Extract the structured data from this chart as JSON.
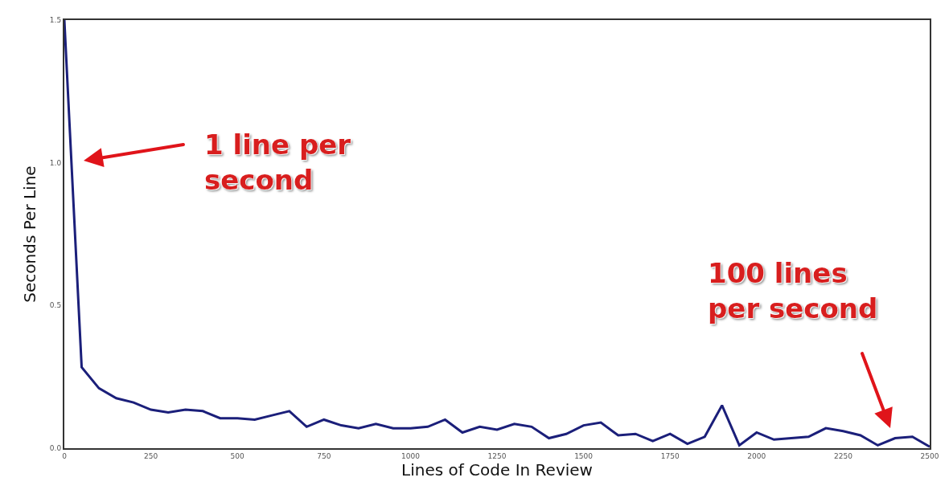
{
  "chart_data": {
    "type": "line",
    "xlabel": "Lines of Code In Review",
    "ylabel": "Seconds Per Line",
    "x": [
      0,
      50,
      100,
      150,
      200,
      250,
      300,
      350,
      400,
      450,
      500,
      550,
      600,
      650,
      700,
      750,
      800,
      850,
      900,
      950,
      1000,
      1050,
      1100,
      1150,
      1200,
      1250,
      1300,
      1350,
      1400,
      1450,
      1500,
      1550,
      1600,
      1650,
      1700,
      1750,
      1800,
      1850,
      1900,
      1950,
      2000,
      2050,
      2100,
      2150,
      2200,
      2250,
      2300,
      2350,
      2400,
      2450,
      2500
    ],
    "series": [
      {
        "color": "#1b1f7a",
        "values": [
          1.5,
          0.284,
          0.21,
          0.175,
          0.16,
          0.135,
          0.125,
          0.135,
          0.13,
          0.105,
          0.105,
          0.1,
          0.115,
          0.13,
          0.075,
          0.1,
          0.08,
          0.07,
          0.085,
          0.07,
          0.07,
          0.075,
          0.1,
          0.055,
          0.075,
          0.065,
          0.085,
          0.075,
          0.035,
          0.05,
          0.08,
          0.09,
          0.045,
          0.05,
          0.025,
          0.05,
          0.015,
          0.04,
          0.15,
          0.01,
          0.055,
          0.03,
          0.035,
          0.04,
          0.07,
          0.06,
          0.045,
          0.01,
          0.035,
          0.04,
          0.005
        ]
      }
    ],
    "xlim": [
      0,
      2500
    ],
    "xticks": [
      0,
      250,
      500,
      750,
      1000,
      1250,
      1500,
      1750,
      2000,
      2250,
      2500
    ],
    "ylim": [
      0,
      1.5
    ],
    "yticks": [
      {
        "value": 0,
        "label": "0.0"
      },
      {
        "value": 0.5,
        "label": "0.5"
      },
      {
        "value": 1,
        "label": "1.0"
      },
      {
        "value": 1.5,
        "label": "1.5"
      }
    ],
    "annotations": [
      "1 line per\nsecond",
      "100 lines\nper second"
    ],
    "grid": false,
    "legend": false,
    "marker": "none",
    "line_style": "solid"
  }
}
